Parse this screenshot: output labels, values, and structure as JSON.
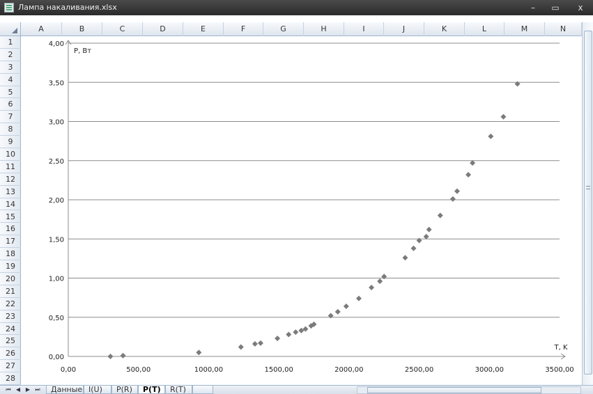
{
  "window": {
    "title": "Лампа накаливания.xlsx",
    "minimize_glyph": "–",
    "maximize_glyph": "▭",
    "close_glyph": "x"
  },
  "columns": [
    "A",
    "B",
    "C",
    "D",
    "E",
    "F",
    "G",
    "H",
    "I",
    "J",
    "K",
    "L",
    "M",
    "N"
  ],
  "rows": [
    "1",
    "2",
    "3",
    "4",
    "5",
    "6",
    "7",
    "8",
    "9",
    "10",
    "11",
    "12",
    "13",
    "14",
    "15",
    "16",
    "17",
    "18",
    "19",
    "20",
    "21",
    "22",
    "23",
    "24",
    "25",
    "26",
    "27",
    "28"
  ],
  "sheet_tabs": [
    {
      "label": "Данные",
      "active": false
    },
    {
      "label": "I(U)",
      "active": false
    },
    {
      "label": "P(R)",
      "active": false
    },
    {
      "label": "P(T)",
      "active": true
    },
    {
      "label": "R(T)",
      "active": false
    },
    {
      "label": "",
      "active": false
    }
  ],
  "nav_buttons": [
    "⏮",
    "◀",
    "▶",
    "⏭"
  ],
  "chart_data": {
    "type": "scatter",
    "xlabel": "T, K",
    "ylabel": "P, Вт",
    "xlim": [
      0,
      3500
    ],
    "ylim": [
      0,
      4
    ],
    "x_ticks": [
      "0,00",
      "500,00",
      "1000,00",
      "1500,00",
      "2000,00",
      "2500,00",
      "3000,00",
      "3500,00"
    ],
    "y_ticks": [
      "0,00",
      "0,50",
      "1,00",
      "1,50",
      "2,00",
      "2,50",
      "3,00",
      "3,50",
      "4,00"
    ],
    "grid": "horizontal",
    "marker_color": "#7b7b7b",
    "points": [
      [
        300,
        0.0
      ],
      [
        390,
        0.01
      ],
      [
        930,
        0.05
      ],
      [
        1230,
        0.12
      ],
      [
        1330,
        0.16
      ],
      [
        1370,
        0.17
      ],
      [
        1490,
        0.23
      ],
      [
        1570,
        0.28
      ],
      [
        1620,
        0.31
      ],
      [
        1660,
        0.33
      ],
      [
        1690,
        0.35
      ],
      [
        1730,
        0.39
      ],
      [
        1750,
        0.41
      ],
      [
        1870,
        0.52
      ],
      [
        1920,
        0.57
      ],
      [
        1980,
        0.64
      ],
      [
        2070,
        0.74
      ],
      [
        2160,
        0.88
      ],
      [
        2220,
        0.96
      ],
      [
        2250,
        1.02
      ],
      [
        2400,
        1.26
      ],
      [
        2460,
        1.38
      ],
      [
        2500,
        1.48
      ],
      [
        2550,
        1.53
      ],
      [
        2570,
        1.62
      ],
      [
        2650,
        1.8
      ],
      [
        2740,
        2.01
      ],
      [
        2770,
        2.11
      ],
      [
        2850,
        2.32
      ],
      [
        2880,
        2.47
      ],
      [
        3010,
        2.81
      ],
      [
        3100,
        3.06
      ],
      [
        3200,
        3.48
      ]
    ]
  }
}
